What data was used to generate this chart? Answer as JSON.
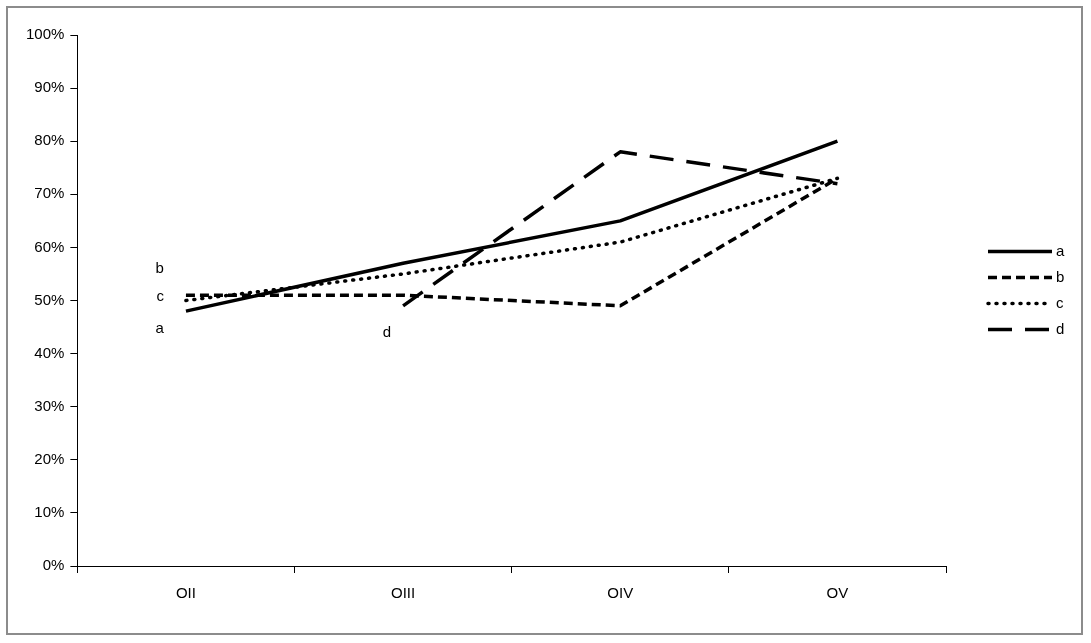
{
  "chart_data": {
    "type": "line",
    "categories": [
      "OII",
      "OIII",
      "OIV",
      "OV"
    ],
    "series": [
      {
        "name": "a",
        "color": "#000000",
        "line_style": "solid",
        "values": [
          48,
          57,
          65,
          80
        ]
      },
      {
        "name": "b",
        "color": "#000000",
        "line_style": "dashed",
        "values": [
          51,
          51,
          49,
          73
        ]
      },
      {
        "name": "c",
        "color": "#000000",
        "line_style": "dotted",
        "values": [
          50,
          55,
          61,
          73
        ]
      },
      {
        "name": "d",
        "color": "#000000",
        "line_style": "longdash",
        "values": [
          null,
          49,
          78,
          72
        ]
      }
    ],
    "ylim": [
      0,
      100
    ],
    "yticks": [
      {
        "value": 0,
        "label": "0%"
      },
      {
        "value": 10,
        "label": "10%"
      },
      {
        "value": 20,
        "label": "20%"
      },
      {
        "value": 30,
        "label": "30%"
      },
      {
        "value": 40,
        "label": "40%"
      },
      {
        "value": 50,
        "label": "50%"
      },
      {
        "value": 60,
        "label": "60%"
      },
      {
        "value": 70,
        "label": "70%"
      },
      {
        "value": 80,
        "label": "80%"
      },
      {
        "value": 90,
        "label": "90%"
      },
      {
        "value": 100,
        "label": "100%"
      }
    ],
    "grid": false,
    "legend": "right",
    "marker": "none",
    "annotations": [
      {
        "text": "b",
        "x": "OII",
        "y": 51
      },
      {
        "text": "c",
        "x": "OII",
        "y": 50
      },
      {
        "text": "a",
        "x": "OII",
        "y": 48
      },
      {
        "text": "d",
        "x": "OIII",
        "y": 49
      }
    ]
  }
}
